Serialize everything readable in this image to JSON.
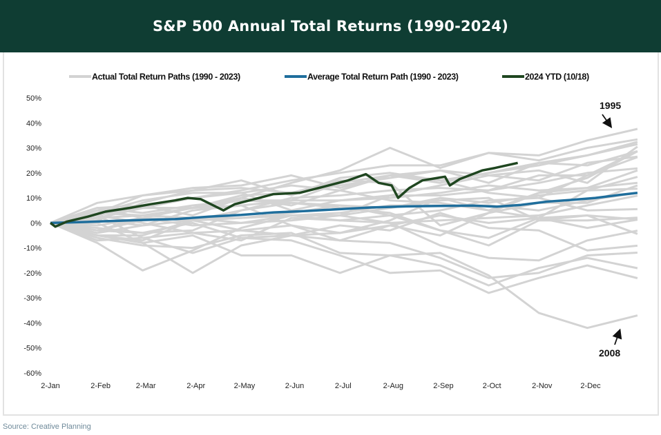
{
  "title": "S&P 500 Annual Total Returns (1990-2024)",
  "source": "Source: Creative Planning",
  "chart_data": {
    "type": "line",
    "title": "S&P 500 Annual Total Returns (1990-2024)",
    "xlabel": "",
    "ylabel": "",
    "x_tick_labels": [
      "2-Jan",
      "2-Feb",
      "2-Mar",
      "2-Apr",
      "2-May",
      "2-Jun",
      "2-Jul",
      "2-Aug",
      "2-Sep",
      "2-Oct",
      "2-Nov",
      "2-Dec"
    ],
    "x_tick_dates": [
      "01-02",
      "02-02",
      "03-02",
      "04-02",
      "05-02",
      "06-02",
      "07-02",
      "08-02",
      "09-02",
      "10-02",
      "11-02",
      "12-02"
    ],
    "y_tick_labels": [
      "50%",
      "40%",
      "30%",
      "20%",
      "10%",
      "0%",
      "-10%",
      "-20%",
      "-30%",
      "-40%",
      "-50%",
      "-60%"
    ],
    "y_ticks": [
      50,
      40,
      30,
      20,
      10,
      0,
      -10,
      -20,
      -30,
      -40,
      -50,
      -60
    ],
    "ylim": [
      -60,
      50
    ],
    "y_unit": "%",
    "grid": false,
    "legend_placement": "top",
    "legend": [
      {
        "label": "Actual Total Return Paths (1990 - 2023)",
        "color": "#d3d3d3"
      },
      {
        "label": "Average Total Return Path (1990 - 2023)",
        "color": "#1f6e9c"
      },
      {
        "label": "2024 YTD (10/18)",
        "color": "#1f4620"
      }
    ],
    "annotations": [
      {
        "text": "1995",
        "points_to_value": 37.6
      },
      {
        "text": "2008",
        "points_to_value": -37
      }
    ],
    "path_dates": [
      "01-02",
      "01-31",
      "02-28",
      "03-31",
      "04-30",
      "05-31",
      "06-30",
      "07-31",
      "08-31",
      "09-30",
      "10-31",
      "11-30",
      "12-31"
    ],
    "actual_paths": [
      [
        0,
        3,
        7,
        10,
        13,
        17,
        20,
        23,
        23,
        28,
        27,
        33,
        37.6
      ],
      [
        0,
        -6,
        -9,
        -10,
        -5,
        -4,
        -12,
        -13,
        -12,
        -21,
        -36,
        -42,
        -37
      ],
      [
        0,
        4,
        11,
        14,
        15,
        19,
        14,
        19,
        21,
        19,
        21,
        16,
        30.5
      ],
      [
        0,
        6,
        7,
        3,
        10,
        16,
        21,
        30,
        22,
        28,
        25,
        30,
        33.4
      ],
      [
        0,
        5,
        6,
        10,
        12,
        15,
        13,
        19,
        16,
        20,
        24,
        27,
        32.4
      ],
      [
        0,
        8,
        11,
        13,
        17,
        11,
        18,
        20,
        17,
        20,
        23,
        27,
        31.5
      ],
      [
        0,
        -3,
        -4,
        -3,
        5,
        10,
        11,
        13,
        14,
        13,
        19,
        19,
        28.7
      ],
      [
        0,
        -1,
        2,
        6,
        11,
        12,
        15,
        18,
        21,
        16,
        24,
        23,
        28.7
      ],
      [
        0,
        1,
        8,
        13,
        14,
        12,
        17,
        16,
        -1,
        4,
        12,
        18,
        28.6
      ],
      [
        0,
        6,
        4,
        7,
        9,
        9,
        16,
        19,
        17,
        12,
        10,
        19,
        26.3
      ],
      [
        0,
        4,
        3,
        6,
        10,
        7,
        13,
        9,
        8,
        5,
        12,
        14,
        21
      ],
      [
        0,
        -8,
        -19,
        -11,
        -2,
        3,
        3,
        11,
        15,
        19,
        17,
        24,
        26.5
      ],
      [
        0,
        2,
        6,
        6,
        7,
        9,
        9,
        11,
        11,
        13,
        16,
        20,
        21.8
      ],
      [
        0,
        -4,
        -1,
        5,
        7,
        -1,
        -7,
        -1,
        -5,
        4,
        8,
        8,
        15
      ],
      [
        0,
        4,
        9,
        12,
        12,
        5,
        9,
        10,
        12,
        15,
        13,
        14,
        16
      ],
      [
        0,
        0,
        -8,
        -20,
        -9,
        -5,
        -4,
        1,
        10,
        5,
        2,
        13,
        18.4
      ],
      [
        0,
        -3,
        1,
        2,
        2,
        4,
        7,
        6,
        10,
        8,
        11,
        13,
        13.7
      ],
      [
        0,
        -5,
        -5,
        1,
        2,
        3,
        4,
        7,
        7,
        7,
        5,
        9,
        12
      ],
      [
        0,
        2,
        3,
        2,
        0,
        1,
        3,
        0,
        1,
        2,
        3,
        7,
        10.9
      ],
      [
        0,
        1,
        -1,
        1,
        5,
        8,
        7,
        3,
        5,
        9,
        10,
        5,
        5.5
      ],
      [
        0,
        -3,
        2,
        1,
        2,
        3,
        1,
        3,
        -3,
        -6,
        2,
        3,
        1.4
      ],
      [
        0,
        2,
        6,
        6,
        9,
        8,
        6,
        4,
        -3,
        -9,
        1,
        1,
        2.1
      ],
      [
        0,
        3,
        0,
        -4,
        -3,
        -1,
        -4,
        -1,
        3,
        0,
        2,
        -2,
        1.3
      ],
      [
        0,
        6,
        2,
        -1,
        0,
        3,
        3,
        6,
        9,
        10,
        1,
        3,
        -4.4
      ],
      [
        0,
        -7,
        -6,
        -4,
        -7,
        2,
        1,
        0,
        -9,
        -14,
        -15,
        -7,
        -3.1
      ],
      [
        0,
        -5,
        -7,
        1,
        -3,
        -5,
        -1,
        -3,
        4,
        -2,
        -3,
        -11,
        -9.1
      ],
      [
        0,
        3,
        -6,
        -12,
        -6,
        -5,
        -7,
        -8,
        -14,
        -22,
        -20,
        -13,
        -11.9
      ],
      [
        0,
        -2,
        -4,
        0,
        -6,
        -7,
        -13,
        -20,
        -19,
        -28,
        -22,
        -17,
        -22.1
      ],
      [
        0,
        -5,
        -8,
        -5,
        -13,
        -13,
        -20,
        -13,
        -17,
        -25,
        -18,
        -14,
        -18.1
      ]
    ],
    "average_path": {
      "dates": [
        "01-02",
        "01-20",
        "02-10",
        "03-01",
        "03-20",
        "04-10",
        "04-30",
        "05-20",
        "06-10",
        "06-30",
        "07-20",
        "08-10",
        "08-31",
        "09-20",
        "10-05",
        "10-20",
        "11-05",
        "11-20",
        "12-05",
        "12-20",
        "12-31"
      ],
      "values": [
        0,
        0.3,
        0.8,
        1.2,
        1.5,
        2.5,
        3.2,
        4.2,
        4.8,
        5.5,
        6.2,
        6.6,
        6.8,
        6.9,
        6.5,
        7.2,
        8.5,
        9.2,
        10,
        11.2,
        12
      ]
    },
    "ytd_2024": {
      "dates": [
        "01-02",
        "01-05",
        "01-12",
        "01-25",
        "02-05",
        "02-20",
        "03-05",
        "03-20",
        "03-28",
        "04-05",
        "04-19",
        "04-26",
        "05-08",
        "05-20",
        "06-05",
        "06-20",
        "07-05",
        "07-16",
        "07-24",
        "08-01",
        "08-05",
        "08-12",
        "08-20",
        "09-03",
        "09-06",
        "09-12",
        "09-26",
        "10-04",
        "10-18"
      ],
      "values": [
        0,
        -1.5,
        0.5,
        2.5,
        4.5,
        6,
        7.5,
        9,
        10,
        9.5,
        5,
        7.5,
        9.5,
        11.5,
        12,
        14.5,
        17,
        19.5,
        16,
        15,
        10,
        14,
        17,
        18.5,
        15,
        17.5,
        21,
        22,
        24
      ]
    }
  }
}
